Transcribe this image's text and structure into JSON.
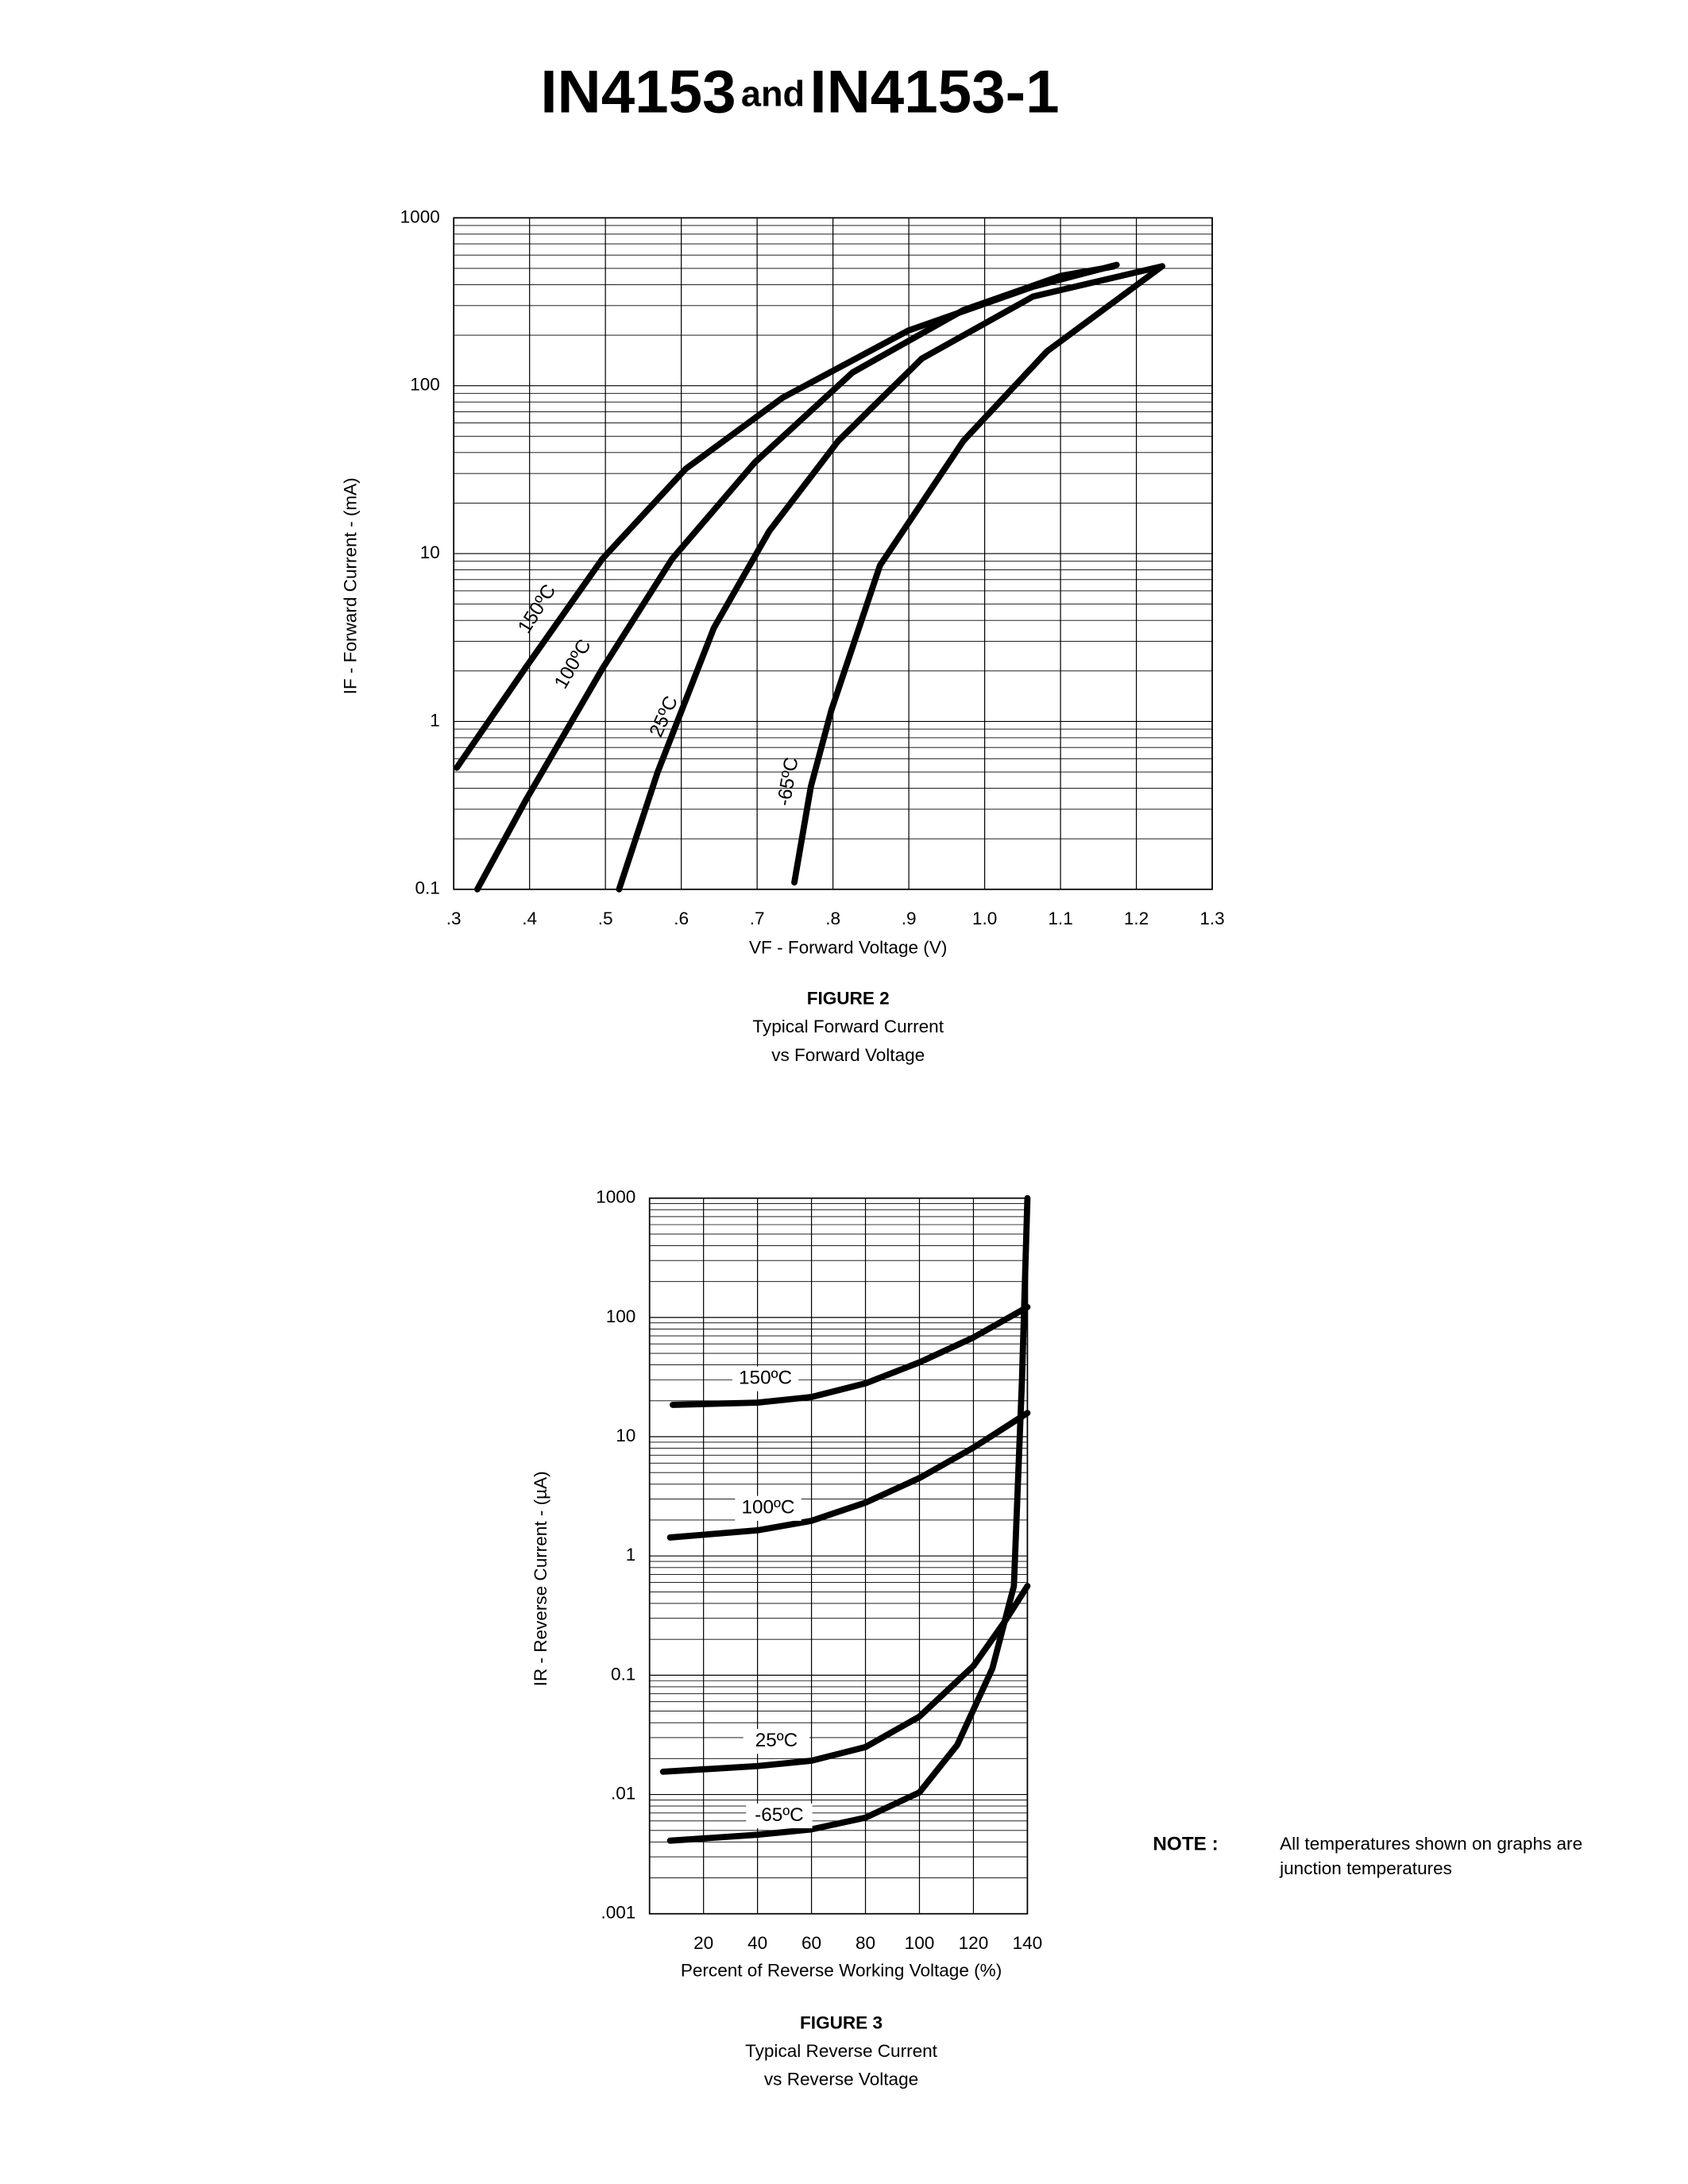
{
  "title": {
    "part1": "IN4153",
    "conjunction": "and",
    "part2": "IN4153-1"
  },
  "note": {
    "label": "NOTE :",
    "lines": [
      "All temperatures shown on graphs are",
      "junction temperatures"
    ]
  },
  "chart_data": [
    {
      "type": "line",
      "ylog": true,
      "grid": true,
      "xlabel": "VF - Forward Voltage (V)",
      "ylabel": "IF - Forward Current - (mA)",
      "caption": [
        "FIGURE 2",
        "Typical Forward Current",
        "vs Forward Voltage"
      ],
      "xlim": [
        0.3,
        1.3
      ],
      "xticks": [
        {
          "value": 0.3,
          "label": ".3"
        },
        {
          "value": 0.4,
          "label": ".4"
        },
        {
          "value": 0.5,
          "label": ".5"
        },
        {
          "value": 0.6,
          "label": ".6"
        },
        {
          "value": 0.7,
          "label": ".7"
        },
        {
          "value": 0.8,
          "label": ".8"
        },
        {
          "value": 0.9,
          "label": ".9"
        },
        {
          "value": 1,
          "label": "1.0"
        },
        1.1,
        1.2,
        1.3
      ],
      "ylim": [
        0.1,
        1000
      ],
      "yticks": [
        0.1,
        1,
        10,
        100,
        1000
      ],
      "series": [
        {
          "name": "150ºC",
          "color": "#000000",
          "x": [
            0.304,
            0.395,
            0.496,
            0.606,
            0.734,
            0.899,
            1.064,
            1.174
          ],
          "values": [
            0.53,
            2.1,
            9.3,
            32,
            85,
            213,
            389,
            525
          ]
        },
        {
          "name": "100ºC",
          "color": "#000000",
          "x": [
            0.331,
            0.395,
            0.496,
            0.588,
            0.697,
            0.826,
            0.972,
            1.101,
            1.17
          ],
          "values": [
            0.1,
            0.34,
            2.06,
            9.3,
            35,
            120,
            282,
            452,
            513
          ]
        },
        {
          "name": "25ºC",
          "color": "#000000",
          "x": [
            0.518,
            0.569,
            0.643,
            0.716,
            0.807,
            0.917,
            1.064,
            1.234
          ],
          "values": [
            0.1,
            0.5,
            3.6,
            13.6,
            47,
            145,
            340,
            515
          ]
        },
        {
          "name": "-65ºC",
          "color": "#000000",
          "x": [
            0.749,
            0.771,
            0.798,
            0.862,
            0.972,
            1.082,
            1.234
          ],
          "values": [
            0.11,
            0.41,
            1.17,
            8.5,
            47,
            160,
            515
          ]
        }
      ]
    },
    {
      "type": "line",
      "ylog": true,
      "grid": true,
      "xlabel": "Percent of Reverse Working Voltage (%)",
      "ylabel": "IR - Reverse Current - (µA)",
      "caption": [
        "FIGURE 3",
        "Typical Reverse Current",
        "vs Reverse Voltage"
      ],
      "xlim": [
        0,
        140
      ],
      "xticks": [
        20,
        40,
        60,
        80,
        100,
        120,
        140
      ],
      "ylim": [
        0.001,
        1000
      ],
      "yticks": [
        {
          "value": 0.001,
          "label": ".001"
        },
        {
          "value": 0.01,
          "label": ".01"
        },
        0.1,
        1,
        10,
        100,
        1000
      ],
      "series": [
        {
          "name": "150ºC",
          "color": "#000000",
          "x": [
            8.6,
            40,
            60,
            80,
            100,
            120,
            140
          ],
          "values": [
            18.5,
            19.3,
            21.5,
            28,
            42,
            68,
            122
          ]
        },
        {
          "name": "100ºC",
          "color": "#000000",
          "x": [
            7.6,
            40,
            60,
            80,
            100,
            120,
            140
          ],
          "values": [
            1.43,
            1.64,
            1.97,
            2.8,
            4.5,
            8.1,
            15.8
          ]
        },
        {
          "name": "25ºC",
          "color": "#000000",
          "x": [
            5,
            40,
            60,
            80,
            100,
            120,
            132,
            140
          ],
          "values": [
            0.0155,
            0.0173,
            0.0192,
            0.025,
            0.045,
            0.12,
            0.29,
            0.56
          ]
        },
        {
          "name": "-65ºC",
          "color": "#000000",
          "x": [
            7.6,
            40,
            60,
            80,
            100,
            114,
            127,
            135,
            138,
            140
          ],
          "values": [
            0.0041,
            0.0046,
            0.0051,
            0.0064,
            0.0104,
            0.026,
            0.114,
            0.56,
            31,
            1000
          ]
        }
      ]
    }
  ]
}
